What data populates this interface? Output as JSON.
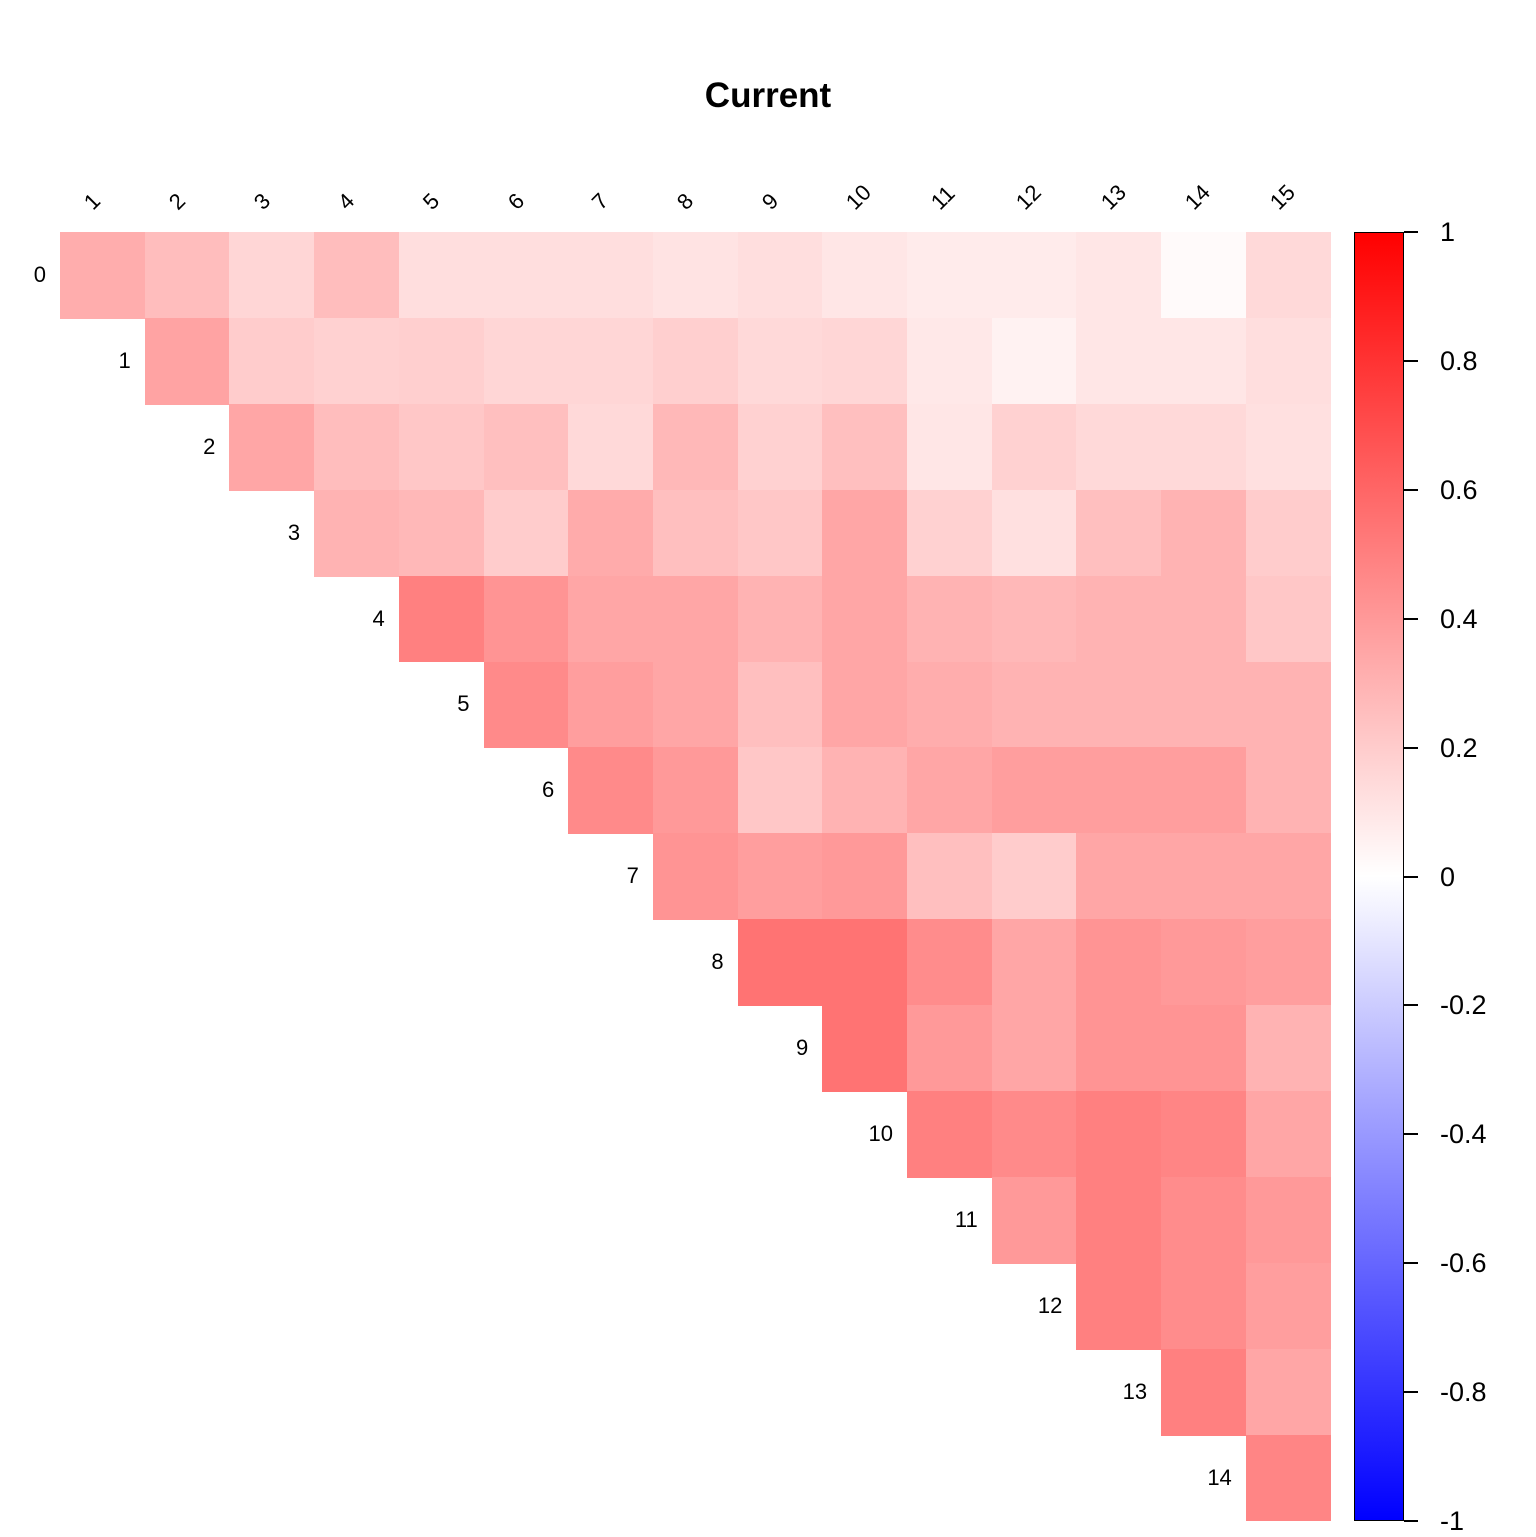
{
  "chart_data": {
    "type": "heatmap",
    "title": "Current",
    "layout": "upper-triangular",
    "vmin": -1,
    "vmax": 1,
    "row_labels": [
      "0",
      "1",
      "2",
      "3",
      "4",
      "5",
      "6",
      "7",
      "8",
      "9",
      "10",
      "11",
      "12",
      "13",
      "14"
    ],
    "col_labels": [
      "1",
      "2",
      "3",
      "4",
      "5",
      "6",
      "7",
      "8",
      "9",
      "10",
      "11",
      "12",
      "13",
      "14",
      "15"
    ],
    "values": [
      [
        0.32,
        0.26,
        0.16,
        0.26,
        0.13,
        0.13,
        0.13,
        0.11,
        0.13,
        0.1,
        0.08,
        0.08,
        0.1,
        0.02,
        0.15
      ],
      [
        0.36,
        0.2,
        0.18,
        0.19,
        0.16,
        0.16,
        0.19,
        0.15,
        0.16,
        0.09,
        0.05,
        0.1,
        0.1,
        0.13
      ],
      [
        0.35,
        0.26,
        0.22,
        0.25,
        0.15,
        0.28,
        0.18,
        0.25,
        0.1,
        0.18,
        0.15,
        0.15,
        0.12
      ],
      [
        0.3,
        0.28,
        0.2,
        0.33,
        0.25,
        0.22,
        0.35,
        0.18,
        0.12,
        0.25,
        0.3,
        0.2
      ],
      [
        0.5,
        0.42,
        0.35,
        0.35,
        0.3,
        0.35,
        0.3,
        0.28,
        0.3,
        0.3,
        0.22
      ],
      [
        0.46,
        0.38,
        0.35,
        0.25,
        0.35,
        0.32,
        0.3,
        0.3,
        0.3,
        0.3
      ],
      [
        0.46,
        0.4,
        0.22,
        0.3,
        0.35,
        0.38,
        0.38,
        0.38,
        0.3
      ],
      [
        0.42,
        0.38,
        0.4,
        0.25,
        0.2,
        0.35,
        0.35,
        0.35
      ],
      [
        0.55,
        0.55,
        0.45,
        0.35,
        0.42,
        0.4,
        0.38
      ],
      [
        0.55,
        0.4,
        0.35,
        0.42,
        0.42,
        0.3
      ],
      [
        0.5,
        0.46,
        0.5,
        0.48,
        0.35
      ],
      [
        0.4,
        0.5,
        0.45,
        0.4
      ],
      [
        0.5,
        0.45,
        0.38
      ],
      [
        0.5,
        0.35
      ],
      [
        0.48
      ]
    ],
    "colorbar_ticks": [
      "1",
      "0.8",
      "0.6",
      "0.4",
      "0.2",
      "0",
      "-0.2",
      "-0.4",
      "-0.6",
      "-0.8",
      "-1"
    ],
    "colors": {
      "positive": "#FF0000",
      "zero": "#FFFFFF",
      "negative": "#0000FF"
    }
  }
}
